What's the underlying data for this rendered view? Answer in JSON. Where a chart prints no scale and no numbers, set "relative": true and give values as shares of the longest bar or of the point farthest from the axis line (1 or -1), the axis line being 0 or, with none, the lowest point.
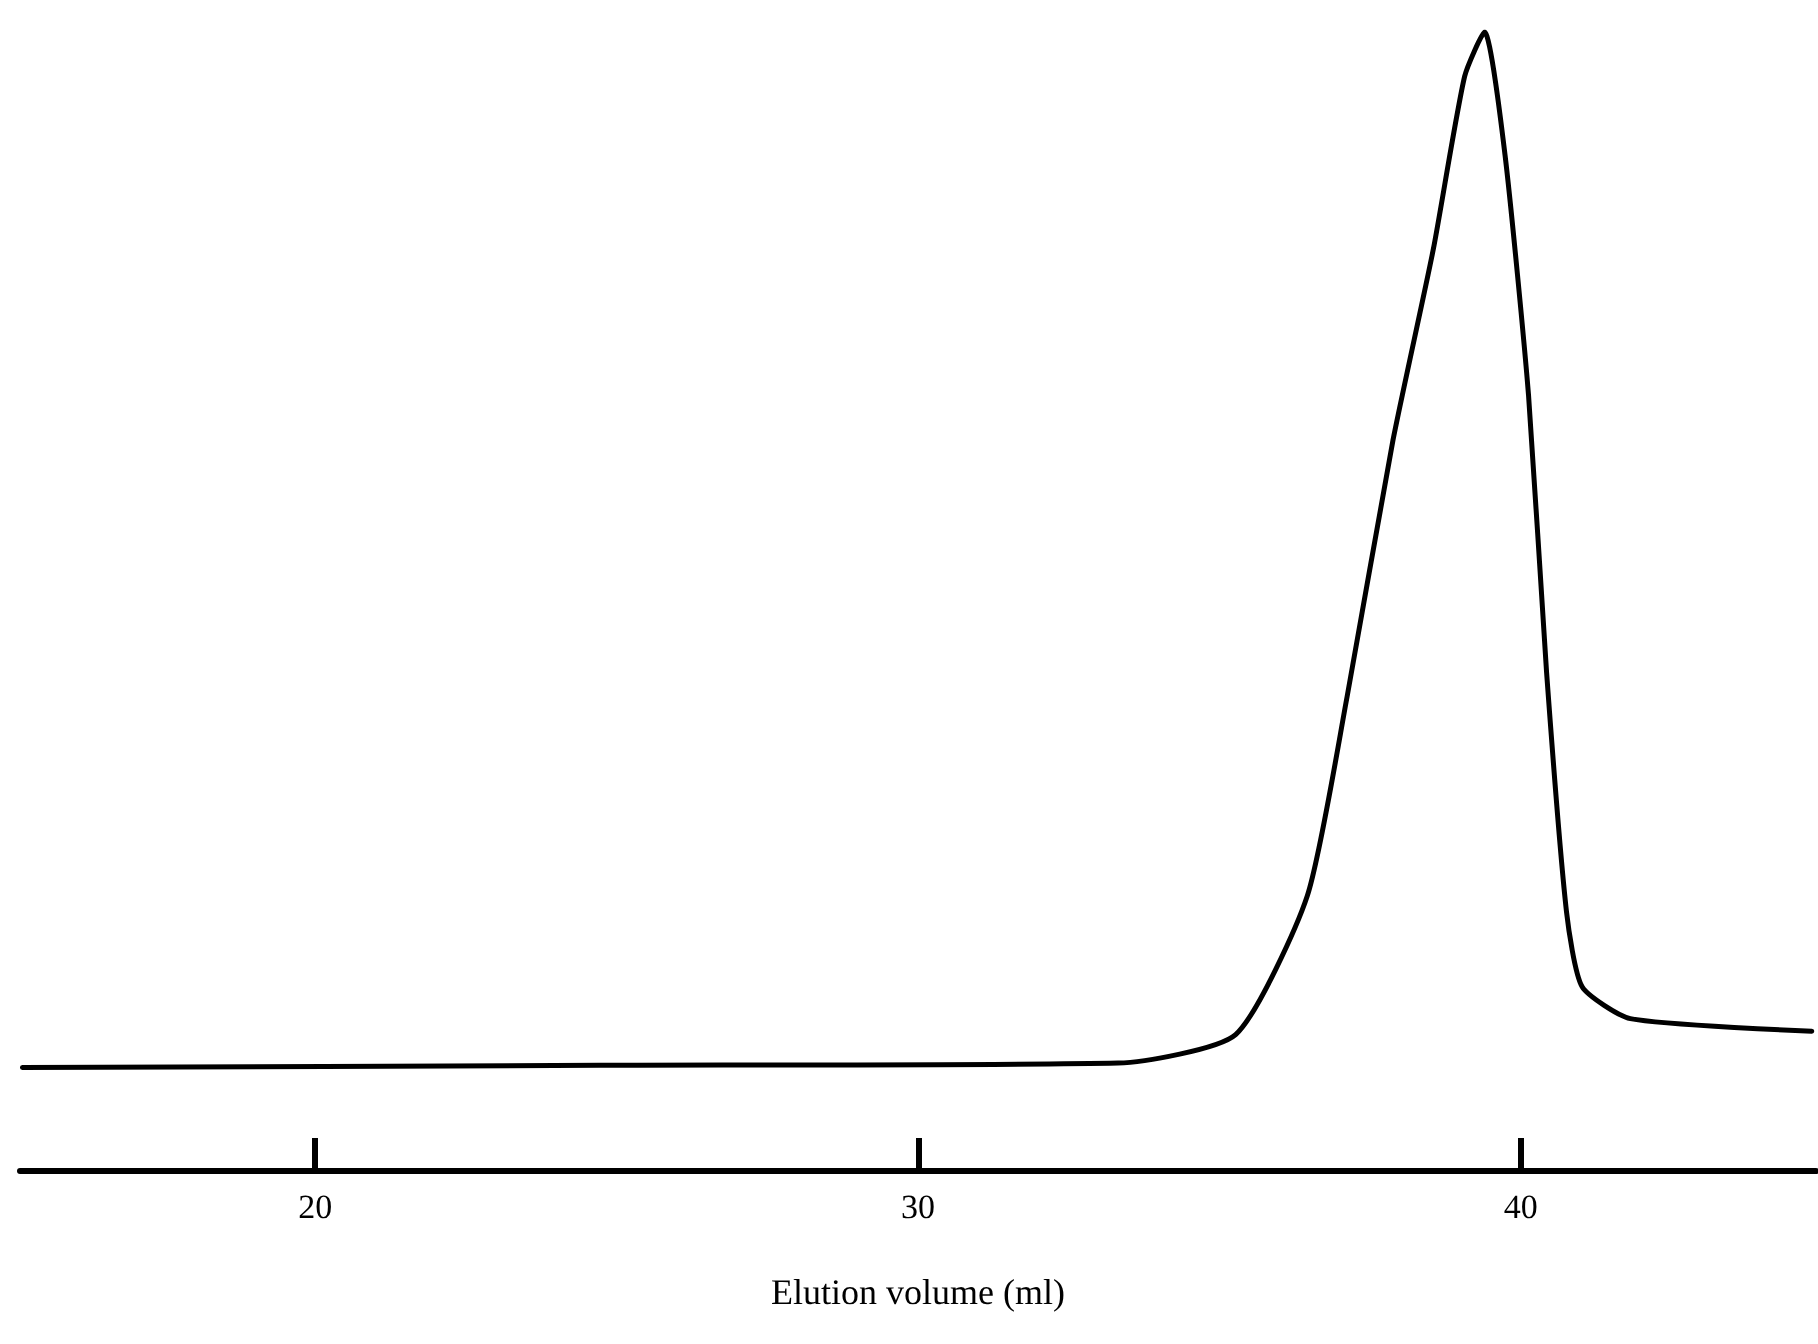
{
  "chart_data": {
    "type": "line",
    "xlabel": "Elution volume (ml)",
    "relative": true,
    "xlim": [
      15.1,
      44.9
    ],
    "xticks": [
      20,
      30,
      40
    ],
    "grid": false,
    "marker": "none",
    "line_style": "solid",
    "series": [
      {
        "color": "#000000",
        "x": [
          15.14,
          24.73,
          33.32,
          35.27,
          36.46,
          37.12,
          37.88,
          38.55,
          39.07,
          39.4,
          39.74,
          40.13,
          40.43,
          40.76,
          41.02,
          41.82,
          44.83
        ],
        "values": [
          0.09,
          0.092,
          0.094,
          0.119,
          0.241,
          0.416,
          0.641,
          0.809,
          0.961,
          1.0,
          0.892,
          0.681,
          0.437,
          0.227,
          0.161,
          0.133,
          0.122
        ]
      }
    ]
  }
}
